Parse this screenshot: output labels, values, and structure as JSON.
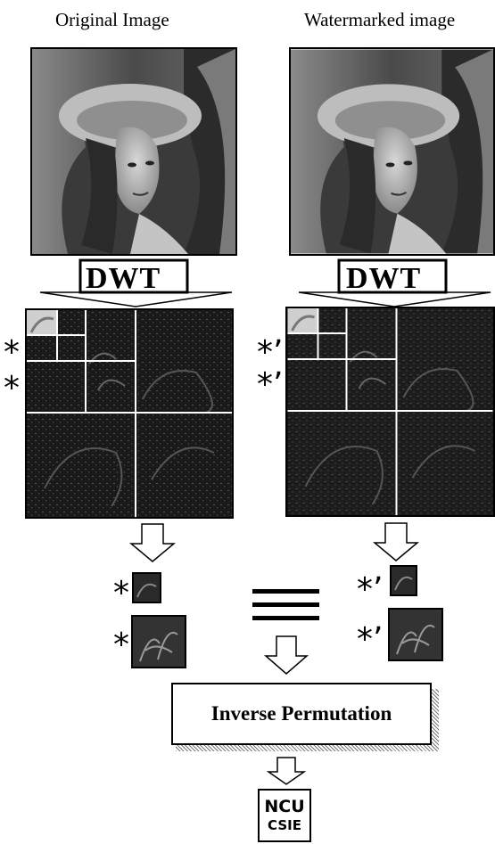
{
  "titles": {
    "original": "Original Image",
    "watermarked": "Watermarked image"
  },
  "dwt_label": "DWT",
  "star": "*",
  "star_prime": "*’",
  "inverse_permutation": "Inverse Permutation",
  "logo": {
    "line1": "NCU",
    "line2": "CSIE"
  }
}
